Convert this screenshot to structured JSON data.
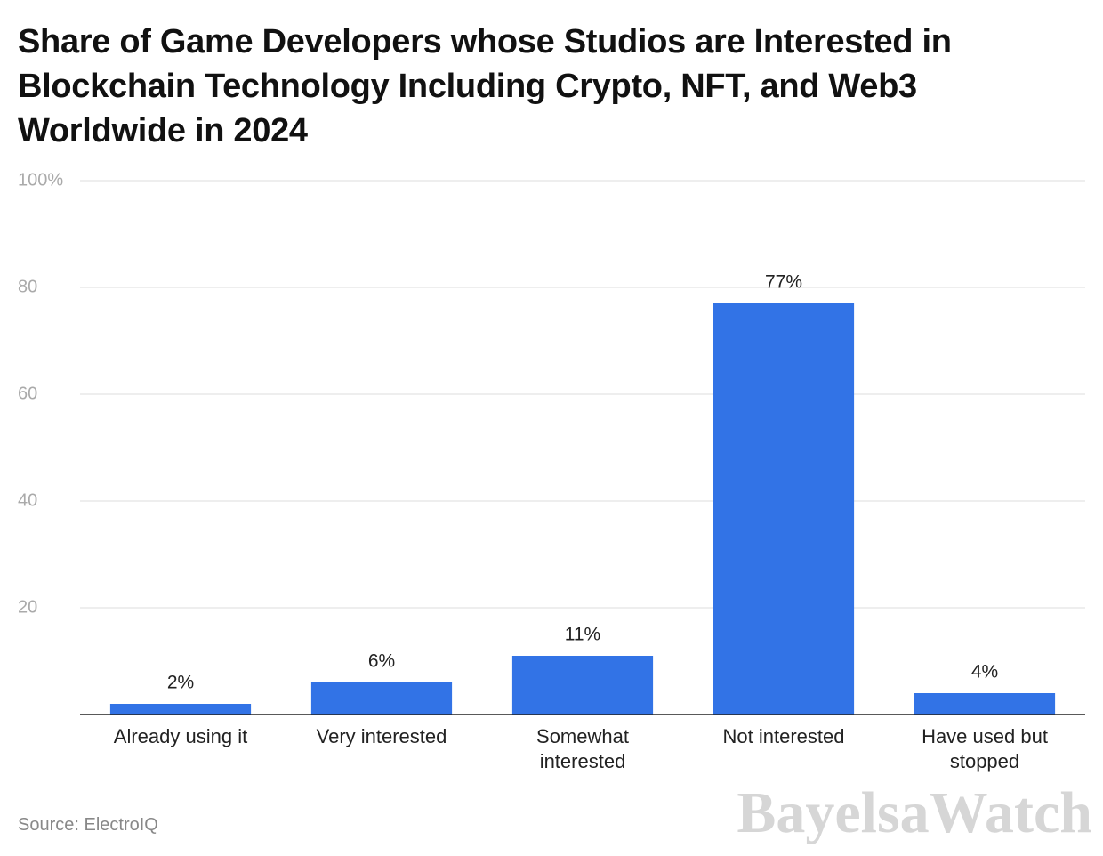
{
  "chart_data": {
    "type": "bar",
    "title": "Share of Game Developers whose Studios are Interested in Blockchain Technology Including Crypto, NFT, and Web3 Worldwide in 2024",
    "categories": [
      "Already using it",
      "Very interested",
      "Somewhat interested",
      "Not interested",
      "Have used but stopped"
    ],
    "values": [
      2,
      6,
      11,
      77,
      4
    ],
    "value_labels": [
      "2%",
      "6%",
      "11%",
      "77%",
      "4%"
    ],
    "color": "#3273e6",
    "ylim": [
      0,
      100
    ],
    "yticks": [
      20,
      40,
      60,
      80,
      {
        "value": 100,
        "label": "100%"
      }
    ],
    "grid": true,
    "source": "Source: ElectroIQ",
    "watermark": "BayelsaWatch"
  }
}
